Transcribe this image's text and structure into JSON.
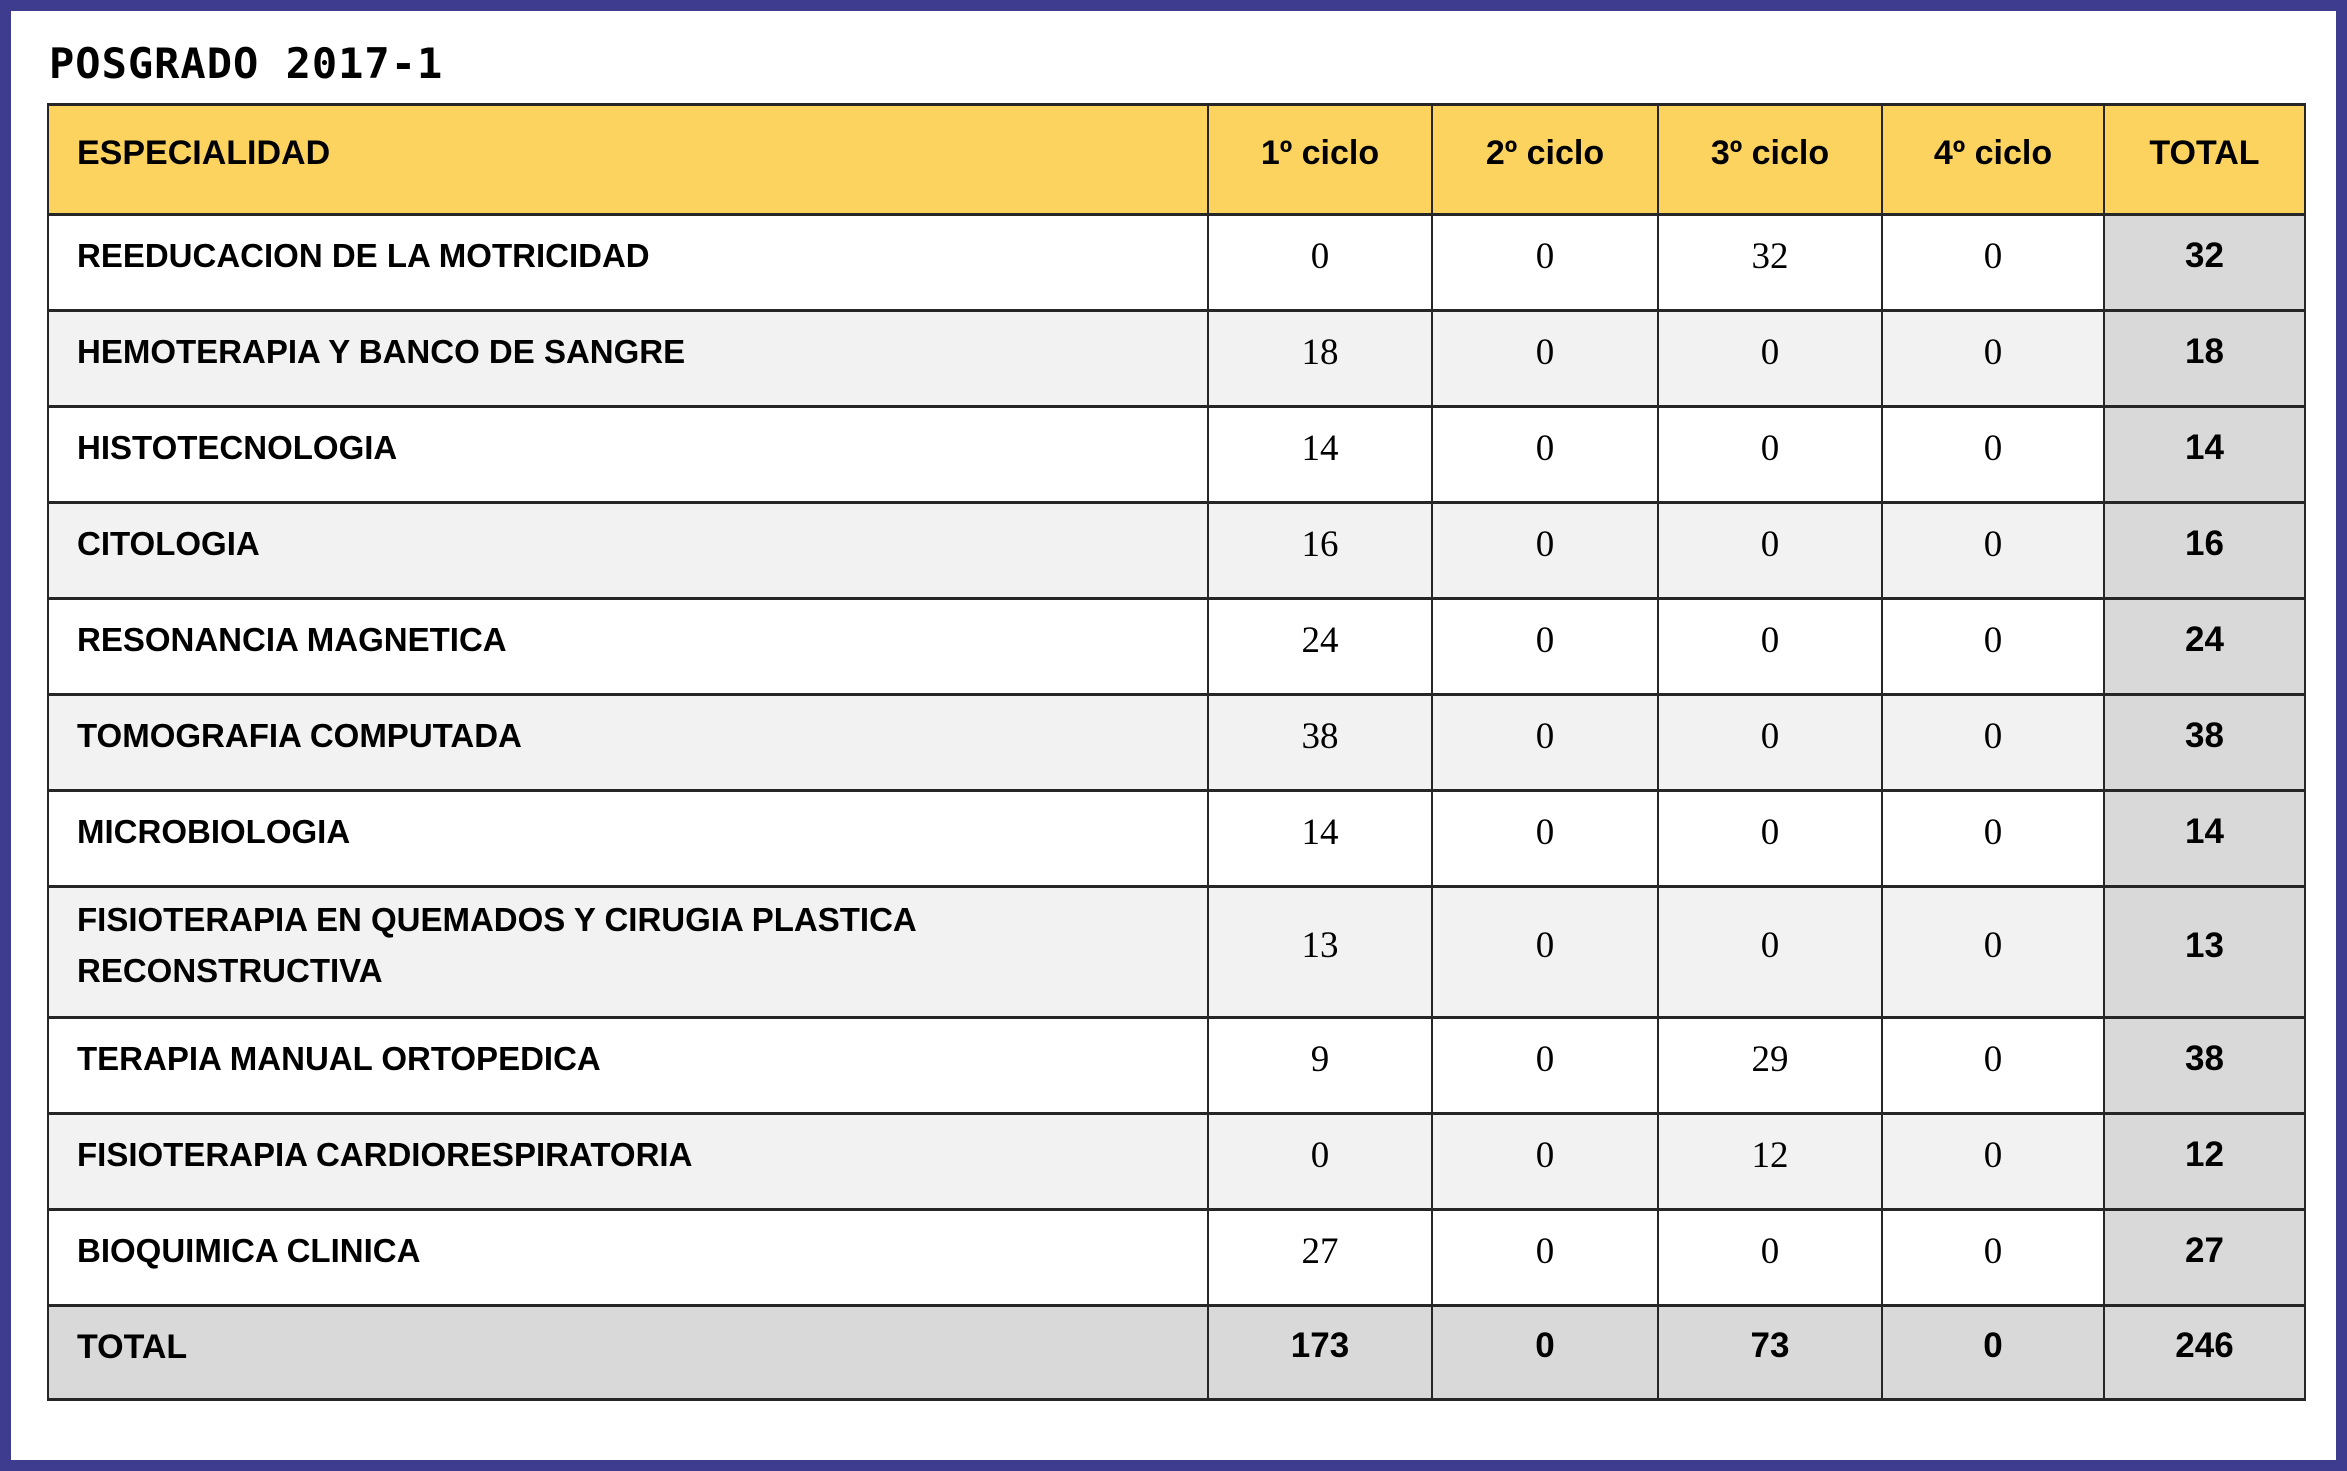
{
  "page": {
    "title": "POSGRADO 2017-1"
  },
  "colors": {
    "page_border": "#3d3c8e",
    "header_fill": "#fbd35e",
    "row_alt_fill": "#f2f2f2",
    "total_fill": "#d9d9d9",
    "grid_line": "#262626"
  },
  "table": {
    "columns": [
      "ESPECIALIDAD",
      "1º ciclo",
      "2º ciclo",
      "3º ciclo",
      "4º ciclo",
      "TOTAL"
    ],
    "rows": [
      {
        "label": "REEDUCACION DE LA MOTRICIDAD",
        "values": [
          "0",
          "0",
          "32",
          "0"
        ],
        "total": "32"
      },
      {
        "label": "HEMOTERAPIA Y BANCO DE SANGRE",
        "values": [
          "18",
          "0",
          "0",
          "0"
        ],
        "total": "18"
      },
      {
        "label": "HISTOTECNOLOGIA",
        "values": [
          "14",
          "0",
          "0",
          "0"
        ],
        "total": "14"
      },
      {
        "label": "CITOLOGIA",
        "values": [
          "16",
          "0",
          "0",
          "0"
        ],
        "total": "16"
      },
      {
        "label": "RESONANCIA MAGNETICA",
        "values": [
          "24",
          "0",
          "0",
          "0"
        ],
        "total": "24"
      },
      {
        "label": "TOMOGRAFIA COMPUTADA",
        "values": [
          "38",
          "0",
          "0",
          "0"
        ],
        "total": "38"
      },
      {
        "label": "MICROBIOLOGIA",
        "values": [
          "14",
          "0",
          "0",
          "0"
        ],
        "total": "14"
      },
      {
        "label": "FISIOTERAPIA EN QUEMADOS Y CIRUGIA PLASTICA RECONSTRUCTIVA",
        "values": [
          "13",
          "0",
          "0",
          "0"
        ],
        "total": "13"
      },
      {
        "label": "TERAPIA MANUAL ORTOPEDICA",
        "values": [
          "9",
          "0",
          "29",
          "0"
        ],
        "total": "38"
      },
      {
        "label": "FISIOTERAPIA CARDIORESPIRATORIA",
        "values": [
          "0",
          "0",
          "12",
          "0"
        ],
        "total": "12"
      },
      {
        "label": "BIOQUIMICA CLINICA",
        "values": [
          "27",
          "0",
          "0",
          "0"
        ],
        "total": "27"
      }
    ],
    "total_row": {
      "label": "TOTAL",
      "values": [
        "173",
        "0",
        "73",
        "0"
      ],
      "total": "246"
    }
  }
}
